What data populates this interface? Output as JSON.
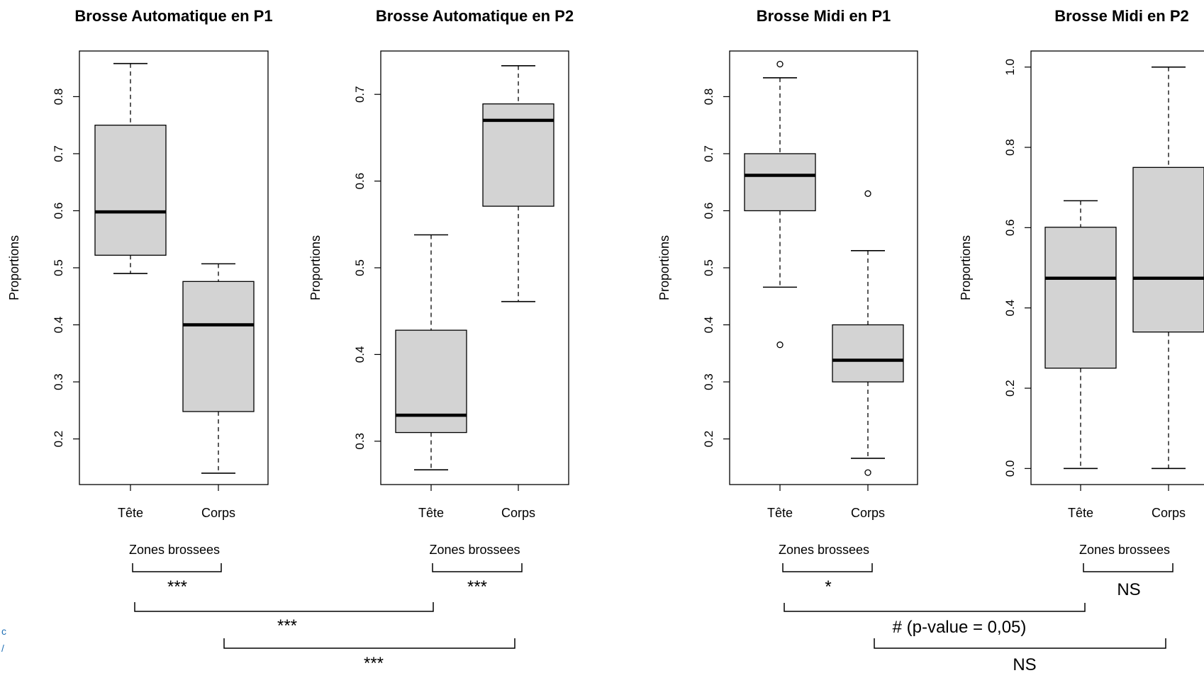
{
  "chart_data": [
    {
      "type": "box",
      "title": "Brosse Automatique en P1",
      "xlabel": "Zones brossees",
      "ylabel": "Proportions",
      "ylim": [
        0.12,
        0.88
      ],
      "yticks": [
        "0.2",
        "0.3",
        "0.4",
        "0.5",
        "0.6",
        "0.7",
        "0.8"
      ],
      "categories": [
        "Tête",
        "Corps"
      ],
      "boxes": [
        {
          "whisker_low": 0.49,
          "q1": 0.522,
          "median": 0.598,
          "q3": 0.75,
          "whisker_high": 0.858,
          "outliers": []
        },
        {
          "whisker_low": 0.14,
          "q1": 0.248,
          "median": 0.4,
          "q3": 0.476,
          "whisker_high": 0.507,
          "outliers": []
        }
      ]
    },
    {
      "type": "box",
      "title": "Brosse Automatique en P2",
      "xlabel": "Zones brossees",
      "ylabel": "Proportions",
      "ylim": [
        0.25,
        0.75
      ],
      "yticks": [
        "0.3",
        "0.4",
        "0.5",
        "0.6",
        "0.7"
      ],
      "categories": [
        "Tête",
        "Corps"
      ],
      "boxes": [
        {
          "whisker_low": 0.267,
          "q1": 0.31,
          "median": 0.33,
          "q3": 0.428,
          "whisker_high": 0.538,
          "outliers": []
        },
        {
          "whisker_low": 0.461,
          "q1": 0.571,
          "median": 0.67,
          "q3": 0.689,
          "whisker_high": 0.733,
          "outliers": []
        }
      ]
    },
    {
      "type": "box",
      "title": "Brosse Midi en P1",
      "xlabel": "Zones brossees",
      "ylabel": "Proportions",
      "ylim": [
        0.12,
        0.88
      ],
      "yticks": [
        "0.2",
        "0.3",
        "0.4",
        "0.5",
        "0.6",
        "0.7",
        "0.8"
      ],
      "categories": [
        "Tête",
        "Corps"
      ],
      "boxes": [
        {
          "whisker_low": 0.466,
          "q1": 0.6,
          "median": 0.662,
          "q3": 0.7,
          "whisker_high": 0.833,
          "outliers": [
            0.857,
            0.365
          ]
        },
        {
          "whisker_low": 0.166,
          "q1": 0.3,
          "median": 0.338,
          "q3": 0.4,
          "whisker_high": 0.53,
          "outliers": [
            0.63,
            0.141
          ]
        }
      ]
    },
    {
      "type": "box",
      "title": "Brosse Midi en P2",
      "xlabel": "Zones brossees",
      "ylabel": "Proportions",
      "ylim": [
        -0.04,
        1.04
      ],
      "yticks": [
        "0.0",
        "0.2",
        "0.4",
        "0.6",
        "0.8",
        "1.0"
      ],
      "categories": [
        "Tête",
        "Corps"
      ],
      "boxes": [
        {
          "whisker_low": 0.0,
          "q1": 0.25,
          "median": 0.474,
          "q3": 0.601,
          "whisker_high": 0.667,
          "outliers": []
        },
        {
          "whisker_low": 0.0,
          "q1": 0.34,
          "median": 0.474,
          "q3": 0.75,
          "whisker_high": 1.0,
          "outliers": []
        }
      ]
    }
  ],
  "annotations": [
    {
      "label": "***"
    },
    {
      "label": "***"
    },
    {
      "label": "***"
    },
    {
      "label": "***"
    },
    {
      "label": "*"
    },
    {
      "label": "NS"
    },
    {
      "label": "# (p-value = 0,05)"
    },
    {
      "label": "NS"
    }
  ],
  "side_fragment": {
    "top": "c",
    "bottom": "/"
  }
}
